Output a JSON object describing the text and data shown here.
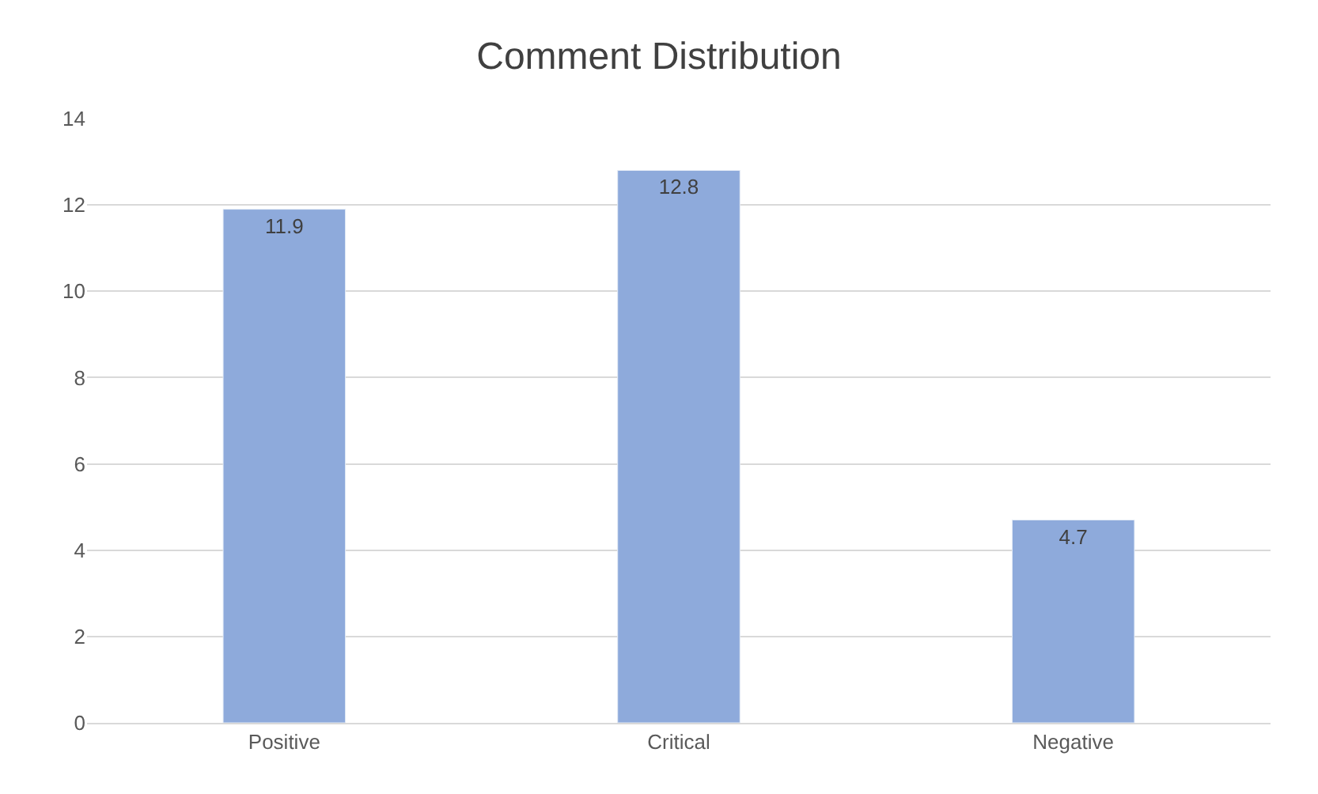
{
  "chart_data": {
    "type": "bar",
    "title": "Comment Distribution",
    "categories": [
      "Positive",
      "Critical",
      "Negative"
    ],
    "values": [
      11.9,
      12.8,
      4.7
    ],
    "color": "#8eaadb",
    "ylim": [
      0,
      14
    ],
    "yticks": [
      0,
      2,
      4,
      6,
      8,
      10,
      12,
      14
    ],
    "grid": "y",
    "data_labels": true,
    "legend": false
  }
}
